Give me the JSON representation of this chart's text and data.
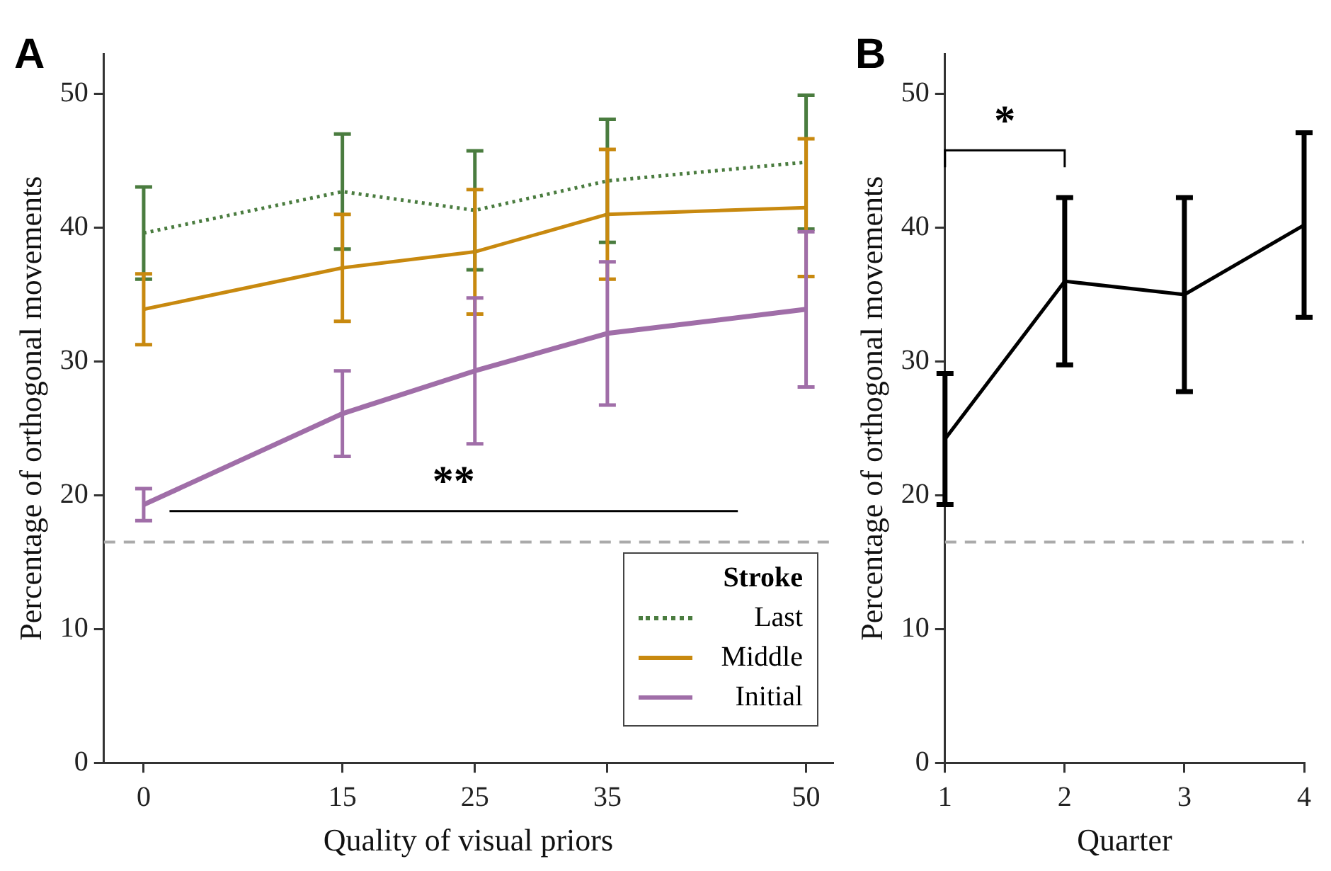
{
  "chart_data": [
    {
      "type": "line",
      "title": "A",
      "xlabel": "Quality of visual priors",
      "ylabel": "Percentage of orthogonal movements",
      "legend_title": "Stroke",
      "legend": "bottom right",
      "marker": "none",
      "grid": false,
      "x": [
        0,
        15,
        25,
        35,
        50
      ],
      "xlim": [
        -3,
        52
      ],
      "xticks": [
        0,
        15,
        25,
        35,
        50
      ],
      "ylim": [
        0,
        53
      ],
      "yticks": [
        0,
        10,
        20,
        30,
        40,
        50
      ],
      "series": [
        {
          "name": "Last",
          "color": "#4a7c3f",
          "line_style": "dotted",
          "values": [
            39.6,
            42.7,
            41.3,
            43.5,
            44.9
          ],
          "errors": [
            3.45,
            4.3,
            4.45,
            4.6,
            5.0
          ]
        },
        {
          "name": "Middle",
          "color": "#c8890f",
          "line_style": "solid",
          "values": [
            33.9,
            37.0,
            38.2,
            41.0,
            41.5
          ],
          "errors": [
            2.65,
            4.0,
            4.65,
            4.85,
            5.15
          ]
        },
        {
          "name": "Initial",
          "color": "#a06ea8",
          "line_style": "solid",
          "values": [
            19.3,
            26.1,
            29.3,
            32.1,
            33.9
          ],
          "errors": [
            1.2,
            3.2,
            5.45,
            5.35,
            5.8
          ]
        }
      ],
      "ref_lines": [
        {
          "axis": "y",
          "value": 16.5,
          "color": "#aaaaaa",
          "line_style": "dashed"
        }
      ],
      "annotations": [
        "**"
      ]
    },
    {
      "type": "line",
      "title": "B",
      "xlabel": "Quarter",
      "ylabel": "Percentage of orthogonal movements",
      "legend": false,
      "marker": "none",
      "grid": false,
      "categories": [
        "1",
        "2",
        "3",
        "4"
      ],
      "ylim": [
        0,
        53
      ],
      "yticks": [
        0,
        10,
        20,
        30,
        40,
        50
      ],
      "series": [
        {
          "color": "#000000",
          "line_style": "solid",
          "values": [
            24.2,
            36.0,
            35.0,
            40.2
          ],
          "errors": [
            4.9,
            6.25,
            7.25,
            6.9
          ]
        }
      ],
      "ref_lines": [
        {
          "axis": "y",
          "value": 16.5,
          "color": "#aaaaaa",
          "line_style": "dashed"
        }
      ],
      "annotations": [
        "*"
      ]
    }
  ]
}
